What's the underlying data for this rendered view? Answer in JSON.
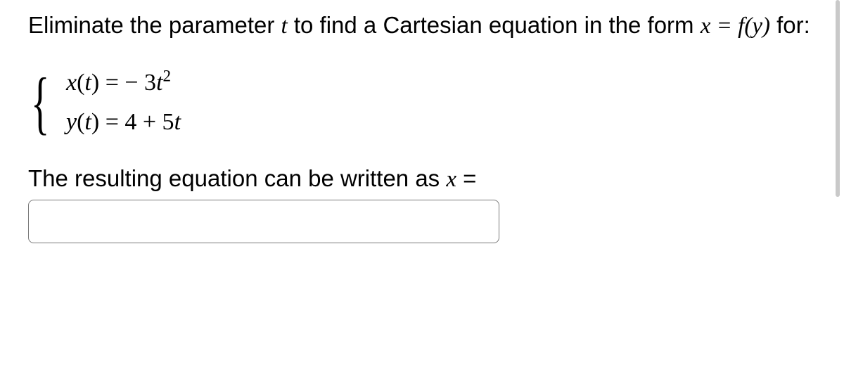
{
  "problem": {
    "prefix": "Eliminate the parameter ",
    "param_var": "t",
    "mid": " to find a Cartesian equation in the form ",
    "form_lhs": "x",
    "form_eq": " = ",
    "form_rhs_fn": "f",
    "form_rhs_arg": "y",
    "suffix": " for:"
  },
  "equations": {
    "eq1": {
      "fn": "x",
      "arg": "t",
      "eq": " =  − 3",
      "tvar": "t",
      "exp": "2"
    },
    "eq2": {
      "fn": "y",
      "arg": "t",
      "eq": " = 4 + 5",
      "tvar": "t"
    }
  },
  "result": {
    "text": "The resulting equation can be written as ",
    "var": "x",
    "eq": " ="
  },
  "answer_value": "",
  "colors": {
    "text": "#000000",
    "input_border": "#7a7a7a",
    "scrollbar": "#c9c9c9",
    "background": "#ffffff"
  }
}
